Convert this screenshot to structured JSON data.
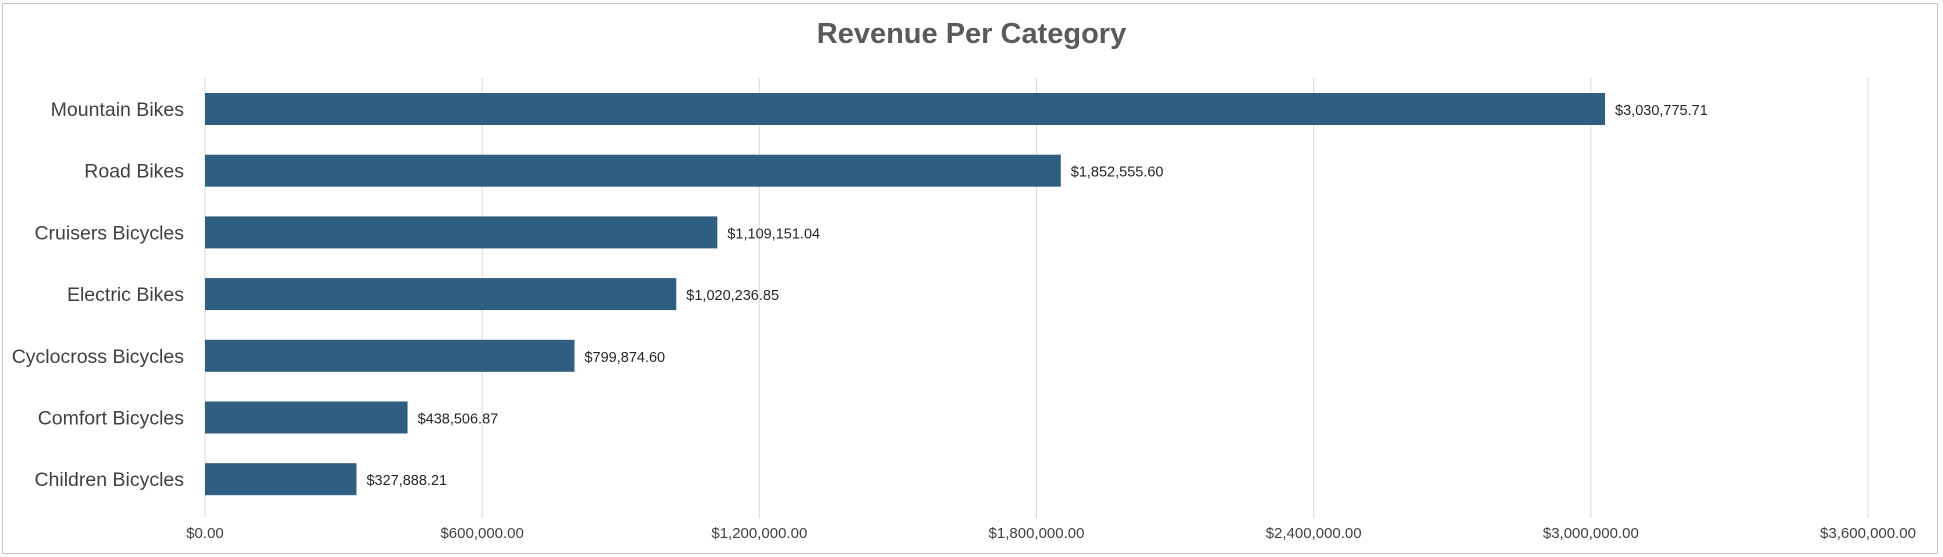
{
  "chart_data": {
    "type": "bar",
    "orientation": "horizontal",
    "title": "Revenue Per Category",
    "xlabel": "",
    "ylabel": "",
    "categories": [
      "Mountain Bikes",
      "Road Bikes",
      "Cruisers Bicycles",
      "Electric Bikes",
      "Cyclocross Bicycles",
      "Comfort Bicycles",
      "Children Bicycles"
    ],
    "values": [
      3030775.71,
      1852555.6,
      1109151.04,
      1020236.85,
      799874.6,
      438506.87,
      327888.21
    ],
    "data_labels": [
      "$3,030,775.71",
      "$1,852,555.60",
      "$1,109,151.04",
      "$1,020,236.85",
      "$799,874.60",
      "$438,506.87",
      "$327,888.21"
    ],
    "xlim": [
      0,
      3600000
    ],
    "x_ticks": [
      0,
      600000,
      1200000,
      1800000,
      2400000,
      3000000,
      3600000
    ],
    "x_tick_labels": [
      "$0.00",
      "$600,000.00",
      "$1,200,000.00",
      "$1,800,000.00",
      "$2,400,000.00",
      "$3,000,000.00",
      "$3,600,000.00"
    ],
    "grid": "vertical",
    "legend": "none",
    "colors": {
      "bar": "#2e5f80",
      "grid": "#d9d9d9",
      "title": "#5a5a5a"
    }
  }
}
